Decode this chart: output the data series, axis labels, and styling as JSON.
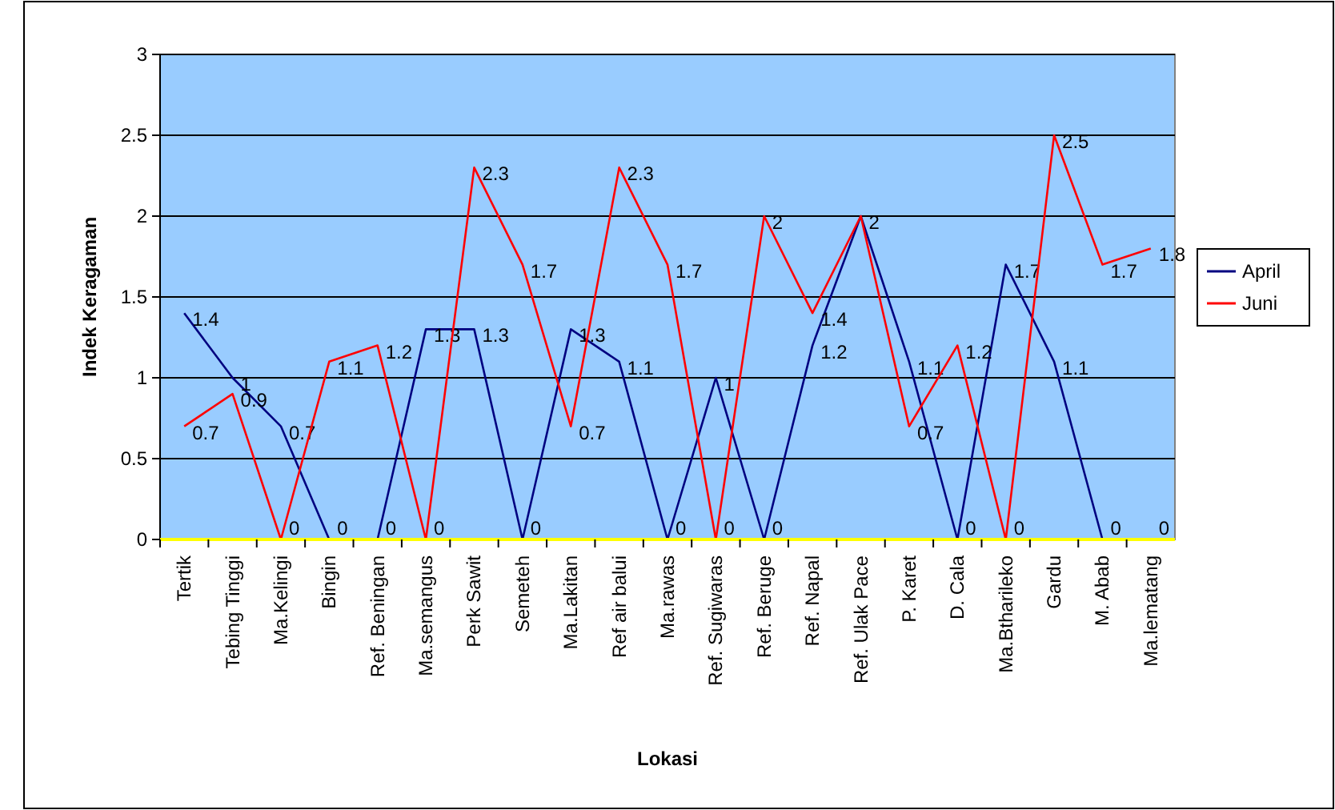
{
  "chart_data": {
    "type": "line",
    "xlabel": "Lokasi",
    "ylabel": "Indek Keragaman",
    "categories": [
      "Tertik",
      "Tebing Tinggi",
      "Ma.Kelingi",
      "Bingin",
      "Ref. Beningan",
      "Ma.semangus",
      "Perk Sawit",
      "Semeteh",
      "Ma.Lakitan",
      "Ref air balui",
      "Ma.rawas",
      "Ref. Sugiwaras",
      "Ref. Beruge",
      "Ref. Napal",
      "Ref. Ulak Pace",
      "P. Karet",
      "D. Cala",
      "Ma.Btharileko",
      "Gardu",
      "M. Abab",
      "Ma.lematang"
    ],
    "series": [
      {
        "name": "April",
        "color": "#000080",
        "values": [
          1.4,
          1,
          0.7,
          0,
          0,
          1.3,
          1.3,
          0,
          1.3,
          1.1,
          0,
          1,
          0,
          1.2,
          2,
          1.1,
          0,
          1.7,
          1.1,
          0,
          0
        ]
      },
      {
        "name": "Juni",
        "color": "#ff0000",
        "values": [
          0.7,
          0.9,
          0,
          1.1,
          1.2,
          0,
          2.3,
          1.7,
          0.7,
          2.3,
          1.7,
          0,
          2,
          1.4,
          2,
          0.7,
          1.2,
          0,
          2.5,
          1.7,
          1.8
        ],
        "value_labels": [
          "0.7",
          "0.9",
          "0",
          "1.1",
          "1.2",
          "0",
          "2.3",
          "1.7",
          "0.7",
          "2.3",
          "1.7",
          "0",
          "2",
          "1.4",
          null,
          "0.7",
          "1.2",
          "0",
          "2.5",
          "1.7",
          "1.8"
        ]
      }
    ],
    "ylim": [
      0,
      3
    ],
    "yticks": [
      0,
      0.5,
      1,
      1.5,
      2,
      2.5,
      3
    ],
    "grid": "y",
    "legend": "right",
    "data_labels": true,
    "marker": "none",
    "line_style": "solid"
  }
}
